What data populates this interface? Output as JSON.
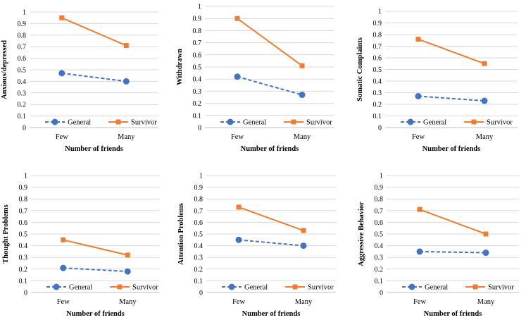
{
  "chart_data": [
    {
      "type": "line",
      "categories": [
        "Few",
        "Many"
      ],
      "series": [
        {
          "name": "General",
          "values": [
            0.47,
            0.4
          ],
          "color": "#4472C4",
          "line": "dashed",
          "marker": "circle"
        },
        {
          "name": "Survivor",
          "values": [
            0.95,
            0.71
          ],
          "color": "#ED7D31",
          "line": "solid",
          "marker": "square"
        }
      ],
      "ylabel": "Anxious/depressed",
      "xlabel": "Number of friends",
      "ylim": [
        0,
        1
      ],
      "yticks": [
        "0",
        "0.1",
        "0.2",
        "0.3",
        "0.4",
        "0.5",
        "0.6",
        "0.7",
        "0.8",
        "0.9",
        "1"
      ],
      "grid": true,
      "legend": "bottom"
    },
    {
      "type": "line",
      "categories": [
        "Few",
        "Many"
      ],
      "series": [
        {
          "name": "General",
          "values": [
            0.42,
            0.27
          ],
          "color": "#4472C4",
          "line": "dashed",
          "marker": "circle"
        },
        {
          "name": "Survivor",
          "values": [
            0.9,
            0.51
          ],
          "color": "#ED7D31",
          "line": "solid",
          "marker": "square"
        }
      ],
      "ylabel": "Withdrawn",
      "xlabel": "Number of friends",
      "ylim": [
        0,
        1
      ],
      "yticks": [
        "0",
        "0.1",
        "0.2",
        "0.3",
        "0.4",
        "0.5",
        "0.6",
        "0.7",
        "0.8",
        "0.9",
        "1"
      ],
      "grid": true,
      "legend": "bottom"
    },
    {
      "type": "line",
      "categories": [
        "Few",
        "Many"
      ],
      "series": [
        {
          "name": "General",
          "values": [
            0.27,
            0.23
          ],
          "color": "#4472C4",
          "line": "dashed",
          "marker": "circle"
        },
        {
          "name": "Survivor",
          "values": [
            0.76,
            0.55
          ],
          "color": "#ED7D31",
          "line": "solid",
          "marker": "square"
        }
      ],
      "ylabel": "Somatic Complaints",
      "xlabel": "Number of friends",
      "ylim": [
        0,
        1
      ],
      "yticks": [
        "0",
        "0.1",
        "0.2",
        "0.3",
        "0.4",
        "0.5",
        "0.6",
        "0.7",
        "0.8",
        "0.9",
        "1"
      ],
      "grid": true,
      "legend": "bottom"
    },
    {
      "type": "line",
      "categories": [
        "Few",
        "Many"
      ],
      "series": [
        {
          "name": "General",
          "values": [
            0.21,
            0.18
          ],
          "color": "#4472C4",
          "line": "dashed",
          "marker": "circle"
        },
        {
          "name": "Survivor",
          "values": [
            0.45,
            0.32
          ],
          "color": "#ED7D31",
          "line": "solid",
          "marker": "square"
        }
      ],
      "ylabel": "Thought Problems",
      "xlabel": "Number of friends",
      "ylim": [
        0,
        1
      ],
      "yticks": [
        "0",
        "0.1",
        "0.2",
        "0.3",
        "0.4",
        "0.5",
        "0.6",
        "0.7",
        "0.8",
        "0.9",
        "1"
      ],
      "grid": true,
      "legend": "bottom"
    },
    {
      "type": "line",
      "categories": [
        "Few",
        "Many"
      ],
      "series": [
        {
          "name": "General",
          "values": [
            0.45,
            0.4
          ],
          "color": "#4472C4",
          "line": "dashed",
          "marker": "circle"
        },
        {
          "name": "Survivor",
          "values": [
            0.73,
            0.53
          ],
          "color": "#ED7D31",
          "line": "solid",
          "marker": "square"
        }
      ],
      "ylabel": "Attention Problems",
      "xlabel": "Number of friends",
      "ylim": [
        0,
        1
      ],
      "yticks": [
        "0",
        "0.1",
        "0.2",
        "0.3",
        "0.4",
        "0.5",
        "0.6",
        "0.7",
        "0.8",
        "0.9",
        "1"
      ],
      "grid": true,
      "legend": "bottom"
    },
    {
      "type": "line",
      "categories": [
        "Few",
        "Many"
      ],
      "series": [
        {
          "name": "General",
          "values": [
            0.35,
            0.34
          ],
          "color": "#4472C4",
          "line": "dashed",
          "marker": "circle"
        },
        {
          "name": "Survivor",
          "values": [
            0.71,
            0.5
          ],
          "color": "#ED7D31",
          "line": "solid",
          "marker": "square"
        }
      ],
      "ylabel": "Aggressive Behavior",
      "xlabel": "Number of friends",
      "ylim": [
        0,
        1
      ],
      "yticks": [
        "0",
        "0.1",
        "0.2",
        "0.3",
        "0.4",
        "0.5",
        "0.6",
        "0.7",
        "0.8",
        "0.9",
        "1"
      ],
      "grid": true,
      "legend": "bottom"
    }
  ]
}
